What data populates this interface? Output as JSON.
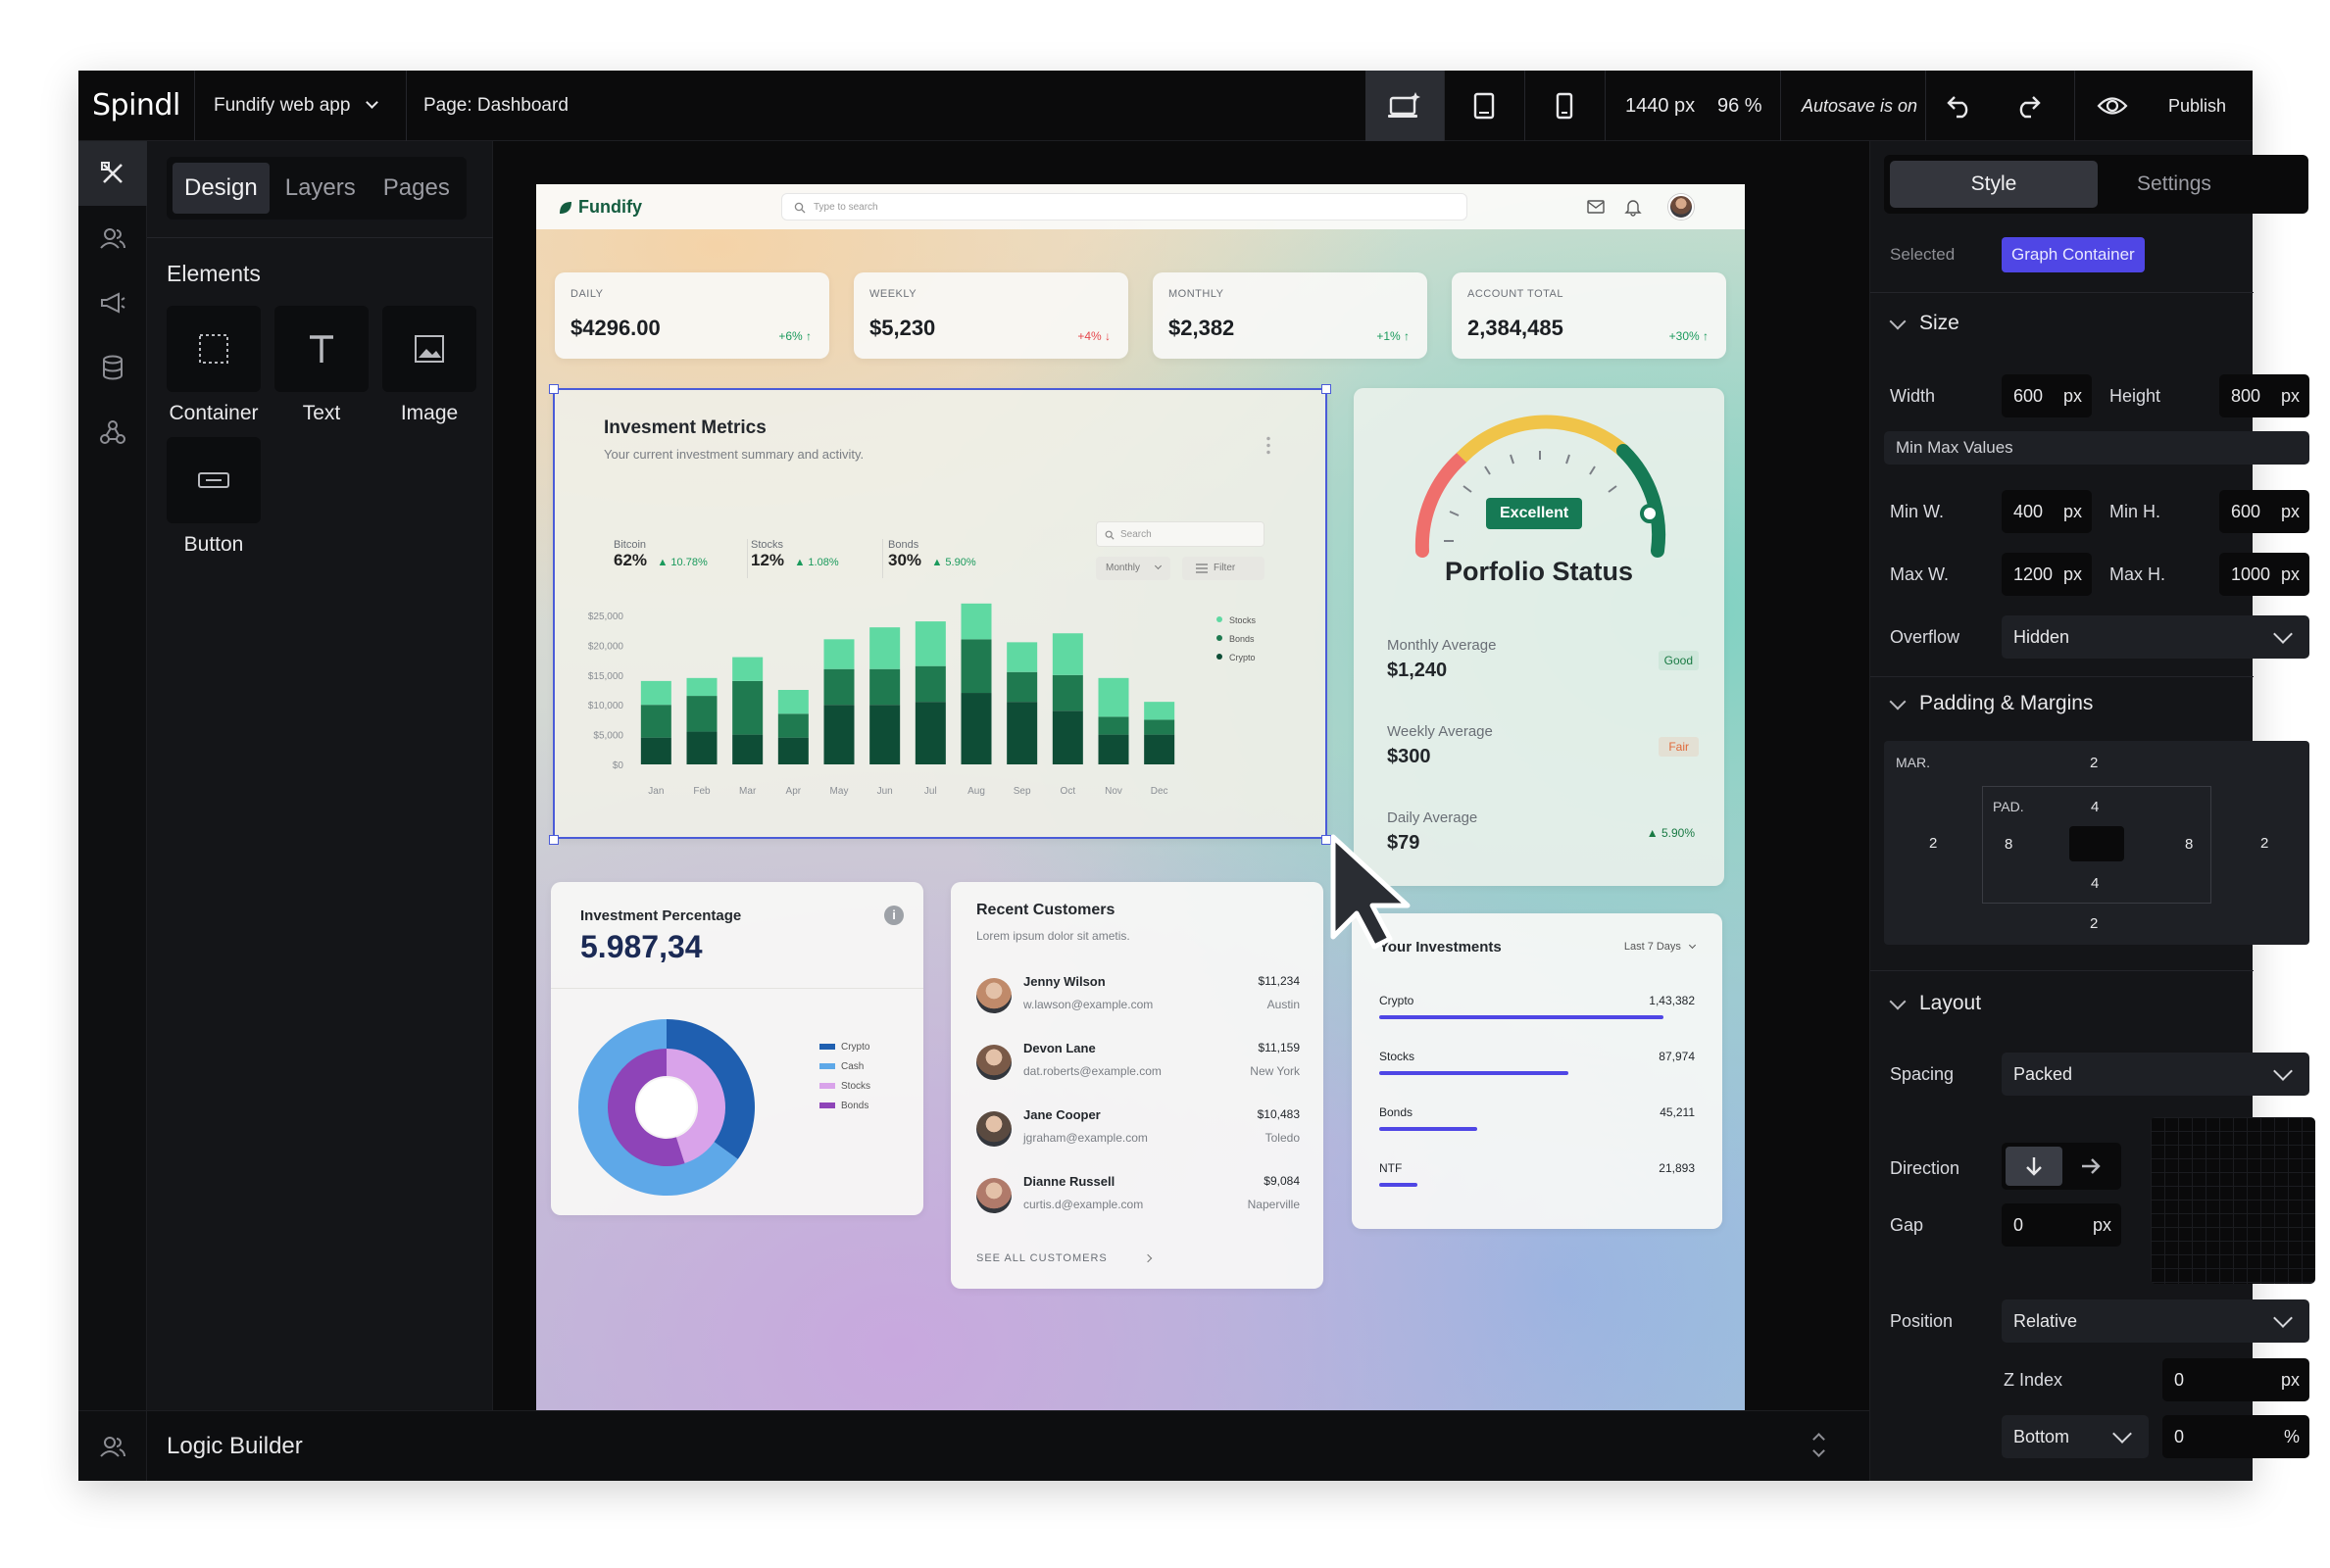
{
  "topbar": {
    "logo": "Spindl",
    "project": "Fundify web app",
    "page": "Page: Dashboard",
    "width": "1440 px",
    "zoom": "96 %",
    "autosave": "Autosave is on",
    "publish": "Publish"
  },
  "left_panel": {
    "tabs": [
      "Design",
      "Layers",
      "Pages"
    ],
    "elements_title": "Elements",
    "elements": [
      "Container",
      "Text",
      "Image",
      "Button"
    ]
  },
  "bottom": {
    "logic_builder": "Logic Builder"
  },
  "dashboard": {
    "brand": "Fundify",
    "search_placeholder": "Type to search",
    "stats": [
      {
        "label": "DAILY",
        "value": "$4296.00",
        "change": "+6% ↑",
        "dir": "up"
      },
      {
        "label": "WEEKLY",
        "value": "$5,230",
        "change": "+4% ↓",
        "dir": "down"
      },
      {
        "label": "MONTHLY",
        "value": "$2,382",
        "change": "+1% ↑",
        "dir": "up"
      },
      {
        "label": "ACCOUNT TOTAL",
        "value": "2,384,485",
        "change": "+30% ↑",
        "dir": "up"
      }
    ],
    "metrics": {
      "title": "Invesment Metrics",
      "subtitle": "Your current investment summary and activity.",
      "assets": [
        {
          "name": "Bitcoin",
          "pct": "62%",
          "change": "▲ 10.78%"
        },
        {
          "name": "Stocks",
          "pct": "12%",
          "change": "▲ 1.08%"
        },
        {
          "name": "Bonds",
          "pct": "30%",
          "change": "▲ 5.90%"
        }
      ],
      "search": "Search",
      "period": "Monthly",
      "filter": "Filter"
    },
    "portfolio": {
      "badge": "Excellent",
      "title": "Porfolio Status",
      "rows": [
        {
          "label": "Monthly Average",
          "value": "$1,240",
          "tag": "Good"
        },
        {
          "label": "Weekly Average",
          "value": "$300",
          "tag": "Fair"
        },
        {
          "label": "Daily Average",
          "value": "$79",
          "tag": "▲ 5.90%"
        }
      ]
    },
    "percentage": {
      "title": "Investment Percentage",
      "value": "5.987,34",
      "info": "i"
    },
    "customers": {
      "title": "Recent Customers",
      "subtitle": "Lorem ipsum dolor sit ametis.",
      "list": [
        {
          "name": "Jenny Wilson",
          "email": "w.lawson@example.com",
          "amount": "$11,234",
          "city": "Austin"
        },
        {
          "name": "Devon Lane",
          "email": "dat.roberts@example.com",
          "amount": "$11,159",
          "city": "New York"
        },
        {
          "name": "Jane Cooper",
          "email": "jgraham@example.com",
          "amount": "$10,483",
          "city": "Toledo"
        },
        {
          "name": "Dianne Russell",
          "email": "curtis.d@example.com",
          "amount": "$9,084",
          "city": "Naperville"
        }
      ],
      "see_all": "SEE ALL CUSTOMERS"
    },
    "investments": {
      "title": "Your Investments",
      "period": "Last 7 Days",
      "items": [
        {
          "name": "Crypto",
          "value": "1,43,382",
          "fill": 0.9
        },
        {
          "name": "Stocks",
          "value": "87,974",
          "fill": 0.6
        },
        {
          "name": "Bonds",
          "value": "45,211",
          "fill": 0.31
        },
        {
          "name": "NTF",
          "value": "21,893",
          "fill": 0.12
        }
      ]
    }
  },
  "chart_data": [
    {
      "type": "bar",
      "stacked": true,
      "categories": [
        "Jan",
        "Feb",
        "Mar",
        "Apr",
        "May",
        "Jun",
        "Jul",
        "Aug",
        "Sep",
        "Oct",
        "Nov",
        "Dec"
      ],
      "y_ticks": [
        "$25,000",
        "$20,000",
        "$15,000",
        "$10,000",
        "$5,000",
        "$0"
      ],
      "ylim": [
        0,
        25000
      ],
      "series": [
        {
          "name": "Crypto",
          "color": "#0e4d36",
          "values": [
            4500,
            5500,
            5000,
            4500,
            10000,
            10000,
            10500,
            12000,
            10500,
            9000,
            5000,
            5000
          ]
        },
        {
          "name": "Bonds",
          "color": "#1f7a50",
          "values": [
            5500,
            6000,
            9000,
            4000,
            6000,
            6000,
            6000,
            9000,
            5000,
            6000,
            3000,
            2500
          ]
        },
        {
          "name": "Stocks",
          "color": "#5fd9a2",
          "values": [
            4000,
            3000,
            4000,
            4000,
            5000,
            7000,
            7500,
            6000,
            5000,
            7000,
            6500,
            3000
          ]
        }
      ],
      "legend": [
        "Stocks",
        "Bonds",
        "Crypto"
      ],
      "legend_position": "top-right"
    },
    {
      "type": "pie",
      "series": [
        {
          "name": "Crypto",
          "color": "#1f5fb0",
          "value": 35
        },
        {
          "name": "Cash",
          "color": "#5ea8e8",
          "value": 65
        },
        {
          "name": "Stocks",
          "color": "#d9a3ea",
          "value": 45
        },
        {
          "name": "Bonds",
          "color": "#8e44b8",
          "value": 55
        }
      ],
      "legend_position": "right"
    }
  ],
  "right_panel": {
    "tabs": [
      "Style",
      "Settings"
    ],
    "selected_label": "Selected",
    "selected_value": "Graph Container",
    "size": {
      "title": "Size",
      "width_label": "Width",
      "width": "600",
      "height_label": "Height",
      "height": "800",
      "minmax_label": "Min Max Values",
      "minw_label": "Min W.",
      "minw": "400",
      "minh_label": "Min H.",
      "minh": "600",
      "maxw_label": "Max W.",
      "maxw": "1200",
      "maxh_label": "Max H.",
      "maxh": "1000",
      "overflow_label": "Overflow",
      "overflow": "Hidden",
      "unit": "px"
    },
    "padding": {
      "title": "Padding & Margins",
      "mar_label": "MAR.",
      "pad_label": "PAD.",
      "mar_top": "2",
      "mar_left": "2",
      "mar_right": "2",
      "mar_bottom": "2",
      "pad_top": "4",
      "pad_left": "8",
      "pad_right": "8",
      "pad_bottom": "4"
    },
    "layout": {
      "title": "Layout",
      "spacing_label": "Spacing",
      "spacing": "Packed",
      "direction_label": "Direction",
      "gap_label": "Gap",
      "gap": "0",
      "position_label": "Position",
      "position": "Relative",
      "zindex_label": "Z Index",
      "zindex": "0",
      "anchor": "Bottom",
      "anchor_value": "0",
      "anchor_unit": "%"
    }
  },
  "colors": {
    "accent": "#4f46e5",
    "selection": "#4a5bd8",
    "up": "#1a9a5c",
    "down": "#e5484d"
  }
}
